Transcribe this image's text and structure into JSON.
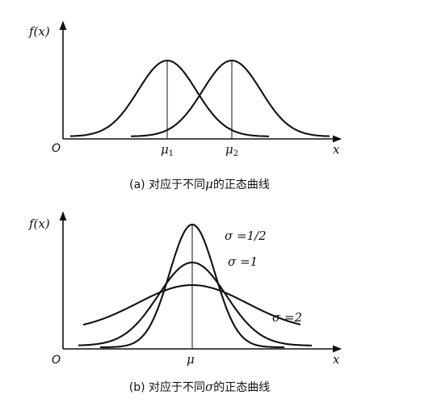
{
  "panel_a": {
    "y_axis_label": "f(x)",
    "origin_label": "O",
    "x_axis_label": "x",
    "mu1_label": "μ",
    "mu1_sub": "1",
    "mu2_label": "μ",
    "mu2_sub": "2",
    "caption_prefix": "(a) 对应于不同",
    "caption_symbol": "μ",
    "caption_suffix": "的正态曲线"
  },
  "panel_b": {
    "y_axis_label": "f(x)",
    "origin_label": "O",
    "x_axis_label": "x",
    "mu_label": "μ",
    "label_sigma_half": "σ =1/2",
    "label_sigma_one": "σ =1",
    "label_sigma_two": "σ =2",
    "caption_prefix": "(b) 对应于不同",
    "caption_symbol": "σ",
    "caption_suffix": "的正态曲线"
  },
  "colors": {
    "ink": "#111111",
    "background": "#ffffff"
  }
}
